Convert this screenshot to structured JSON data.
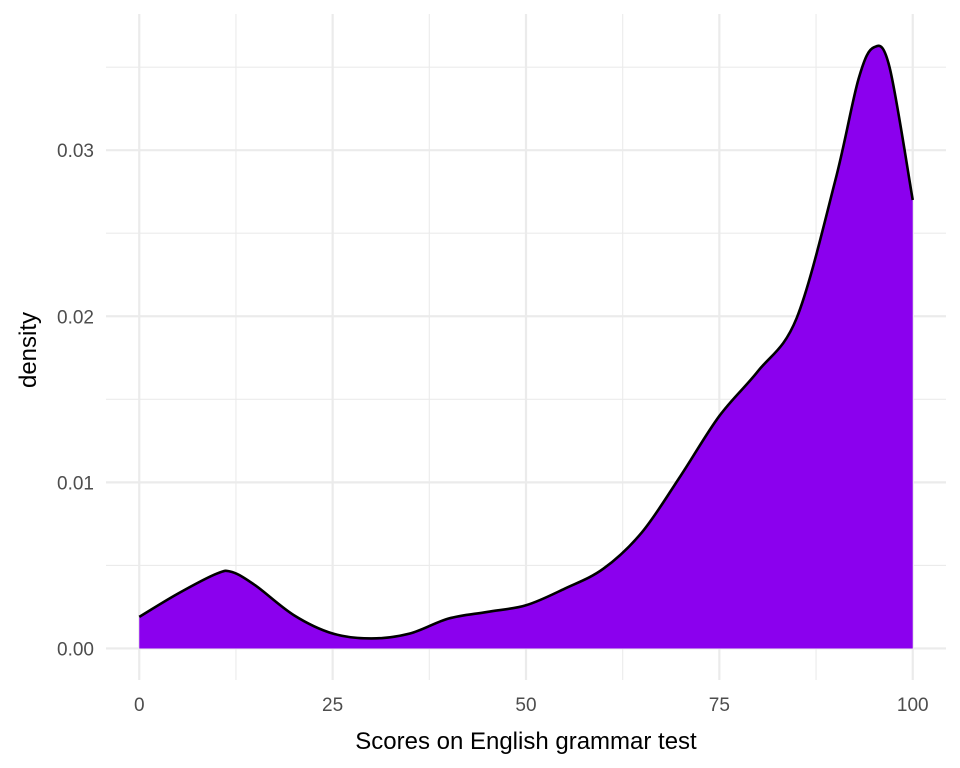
{
  "chart_data": {
    "type": "area",
    "title": "",
    "xlabel": "Scores on English grammar test",
    "ylabel": "density",
    "xlim": [
      -4.3,
      104.3
    ],
    "ylim": [
      -0.0019,
      0.0382
    ],
    "x_ticks": [
      0,
      25,
      50,
      75,
      100
    ],
    "x_tick_labels": [
      "0",
      "25",
      "50",
      "75",
      "100"
    ],
    "x_minor_ticks": [
      12.5,
      37.5,
      62.5,
      87.5
    ],
    "y_ticks": [
      0.0,
      0.01,
      0.02,
      0.03
    ],
    "y_tick_labels": [
      "0.00",
      "0.01",
      "0.02",
      "0.03"
    ],
    "y_minor_ticks": [
      0.005,
      0.015,
      0.025,
      0.035
    ],
    "grid": true,
    "legend": "none",
    "fill_color": "#8B00EE",
    "line_color": "#000000",
    "grid_color": "#ebebeb",
    "series": [
      {
        "x": [
          0,
          5,
          10,
          12,
          15,
          20,
          25,
          30,
          35,
          40,
          45,
          50,
          55,
          60,
          65,
          70,
          75,
          80,
          85,
          90,
          93,
          95,
          97,
          100
        ],
        "y": [
          0.0019,
          0.0033,
          0.0045,
          0.0046,
          0.0038,
          0.002,
          0.0009,
          0.0006,
          0.0009,
          0.0018,
          0.0022,
          0.0026,
          0.0036,
          0.0048,
          0.007,
          0.0104,
          0.014,
          0.0167,
          0.0199,
          0.0282,
          0.0343,
          0.0362,
          0.035,
          0.027
        ]
      }
    ]
  }
}
